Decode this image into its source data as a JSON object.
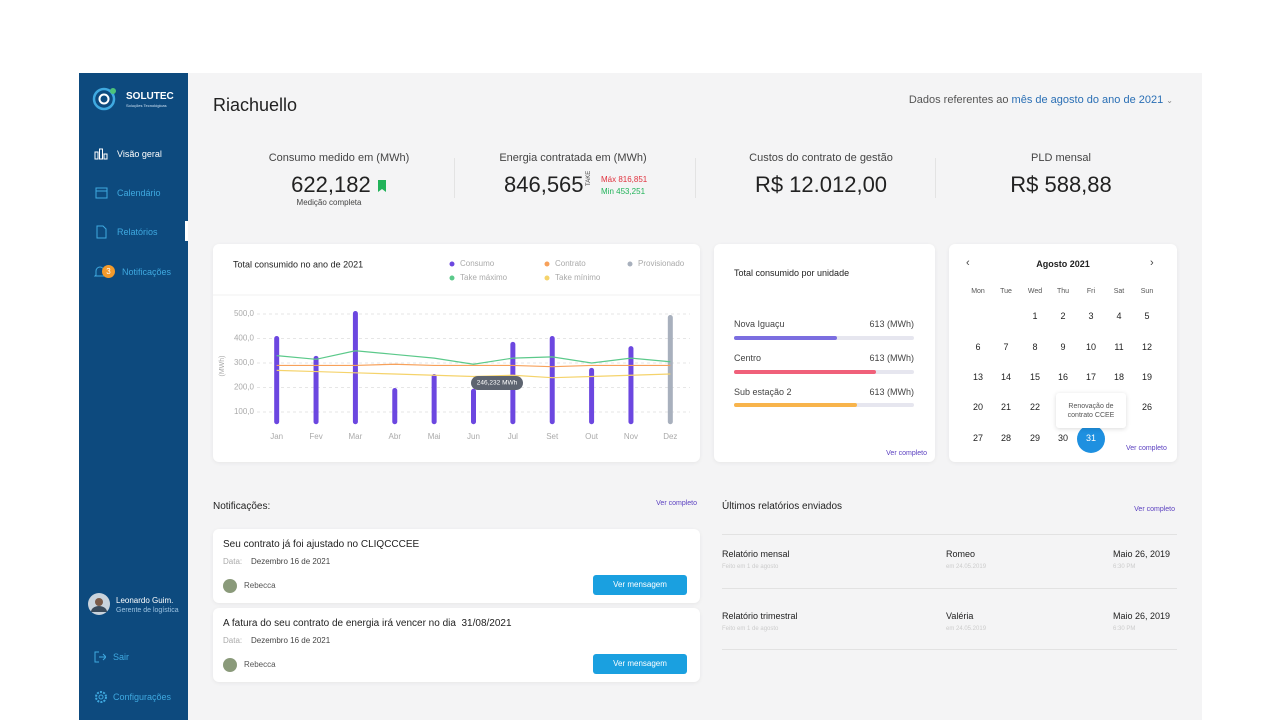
{
  "sidebar": {
    "brand": "SOLUTEC",
    "brand_sub": "Soluções Tecnológicas",
    "menu": [
      "Visão geral",
      "Calendário",
      "Relatórios",
      "Notificações"
    ],
    "notification_count": 3,
    "user_name": "Leonardo Guim.",
    "user_role": "Gerente de logística",
    "logout": "Sair",
    "settings": "Configurações"
  },
  "header": {
    "title": "Riachuello",
    "period_prefix": "Dados referentes ao",
    "period": "mês de agosto do ano de 2021"
  },
  "kpis": [
    {
      "label": "Consumo medido em (MWh)",
      "value": "622,182",
      "note": "Medição completa"
    },
    {
      "label": "Energia contratada em (MWh)",
      "value": "846,565",
      "take": "TAKE",
      "max": "Máx 816,851",
      "min": "Min 453,251"
    },
    {
      "label": "Custos do contrato de gestão",
      "value": "R$ 12.012,00"
    },
    {
      "label": "PLD mensal",
      "value": "R$ 588,88"
    }
  ],
  "chart_data": {
    "type": "bar",
    "title": "Total consumido no ano de 2021",
    "y_label": "(MWh)",
    "categories": [
      "Jan",
      "Fev",
      "Mar",
      "Abr",
      "Mai",
      "Jun",
      "Jul",
      "Set",
      "Out",
      "Nov",
      "Dez"
    ],
    "series": [
      {
        "name": "Consumo",
        "type": "bar",
        "color": "#6c47e0",
        "values": [
          410,
          329,
          512,
          198,
          255,
          195,
          386,
          410,
          280,
          369,
          null
        ]
      },
      {
        "name": "Contrato",
        "type": "line",
        "color": "#f7a15a",
        "values": [
          290,
          290,
          290,
          295,
          290,
          290,
          290,
          285,
          290,
          290,
          290
        ]
      },
      {
        "name": "Provisionado",
        "type": "bar",
        "color": "#a8b0bd",
        "values": [
          null,
          null,
          null,
          null,
          null,
          null,
          null,
          null,
          null,
          null,
          496
        ]
      },
      {
        "name": "Take máximo",
        "type": "line",
        "color": "#5bc98a",
        "values": [
          330,
          315,
          350,
          335,
          320,
          295,
          320,
          325,
          300,
          320,
          305
        ]
      },
      {
        "name": "Take mínimo",
        "type": "line",
        "color": "#f5d36b",
        "values": [
          270,
          265,
          260,
          255,
          250,
          245,
          250,
          240,
          245,
          250,
          255
        ]
      }
    ],
    "ylim": [
      50,
      550
    ],
    "yticks": [
      {
        "value": 100,
        "label": "100,0"
      },
      {
        "value": 200,
        "label": "200,0"
      },
      {
        "value": 300,
        "label": "300,0"
      },
      {
        "value": 400,
        "label": "400,0"
      },
      {
        "value": 500,
        "label": "500,0"
      }
    ],
    "grid": true,
    "tooltip": "246,232 MWh"
  },
  "units": {
    "title": "Total consumido por unidade",
    "rows": [
      {
        "name": "Nova Iguaçu",
        "value": "613 (MWh)"
      },
      {
        "name": "Centro",
        "value": "613 (MWh)"
      },
      {
        "name": "Sub estação 2",
        "value": "613 (MWh)"
      }
    ],
    "link": "Ver completo"
  },
  "calendar": {
    "month": "Agosto 2021",
    "weekdays": [
      "Mon",
      "Tue",
      "Wed",
      "Thu",
      "Fri",
      "Sat",
      "Sun"
    ],
    "weeks": [
      [
        null,
        null,
        1,
        2,
        3,
        4,
        5
      ],
      [
        6,
        7,
        8,
        9,
        10,
        11,
        12
      ],
      [
        13,
        14,
        15,
        16,
        17,
        18,
        19
      ],
      [
        20,
        21,
        22,
        null,
        null,
        null,
        26
      ],
      [
        27,
        28,
        29,
        30,
        31,
        null,
        null
      ]
    ],
    "event": "Renovação de contrato CCEE",
    "link": "Ver completo"
  },
  "notifications": {
    "title": "Notificações:",
    "link": "Ver completo",
    "items": [
      {
        "text": "Seu contrato já foi ajustado no CLIQCCCEE",
        "date_label": "Data:",
        "date": "Dezembro 16 de 2021",
        "author": "Rebecca",
        "button": "Ver mensagem"
      },
      {
        "text": "A fatura do seu contrato de energia irá vencer no dia  31/08/2021",
        "date_label": "Data:",
        "date": "Dezembro 16 de 2021",
        "author": "Rebecca",
        "button": "Ver mensagem"
      }
    ]
  },
  "reports": {
    "title": "Últimos relatórios enviados",
    "link": "Ver completo",
    "rows": [
      {
        "name": "Relatório mensal",
        "sent": "Feito em 1 de agosto",
        "person": "Romeo",
        "person_date": "em 24.05.2019",
        "date": "Maio 26, 2019",
        "time": "6:30 PM"
      },
      {
        "name": "Relatório trimestral",
        "sent": "Feito em 1 de agosto",
        "person": "Valéria",
        "person_date": "em 24.05.2019",
        "date": "Maio 26, 2019",
        "time": "6:30 PM"
      }
    ]
  }
}
